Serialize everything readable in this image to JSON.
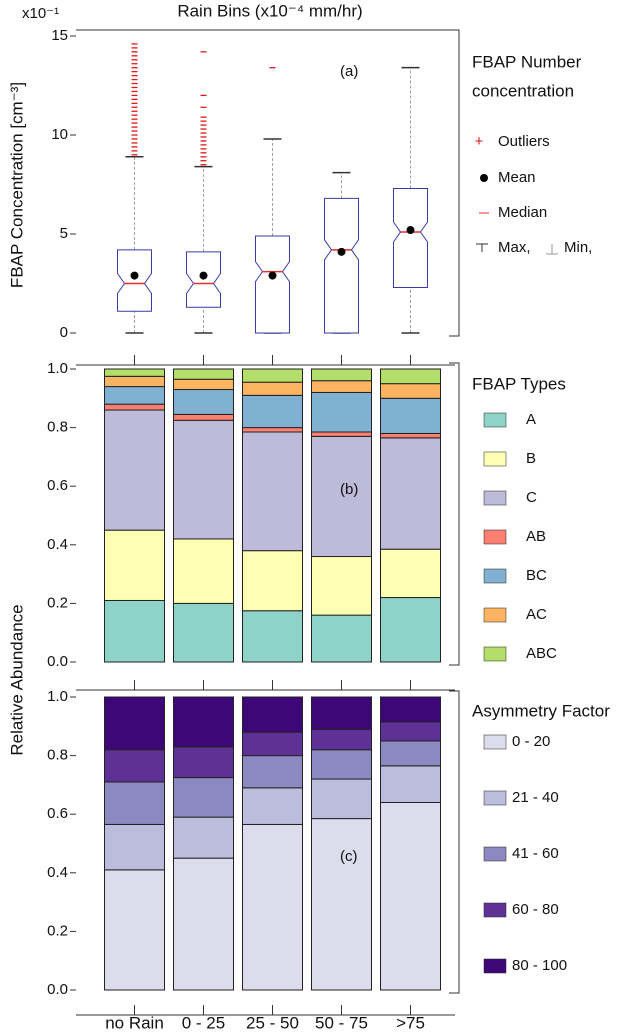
{
  "chart_data": [
    {
      "type": "box",
      "xlabel": "Rain Bins (x10⁻⁴ mm/hr)",
      "ylabel": "FBAP Concentration [cm⁻³]",
      "scale_label": "x10⁻¹",
      "annotation": "(a)",
      "ylim": [
        0,
        15
      ],
      "yticks": [
        0,
        5,
        10,
        15
      ],
      "legend_title": [
        "FBAP Number",
        "concentration"
      ],
      "legend": [
        "Outliers",
        "Mean",
        "Median",
        "Max,",
        "Min,"
      ],
      "box_color": "#3a3aa8",
      "median_color": "#e03030",
      "outlier_color": "#e01818",
      "whisker_color": "#a0a0a0",
      "mean_color": "#000000",
      "boxes": [
        {
          "min": 0,
          "q1": 1.1,
          "median": 2.5,
          "q3": 4.2,
          "max": 8.9,
          "mean": 2.9,
          "outliers": [
            9.0,
            9.2,
            9.4,
            9.6,
            9.8,
            10.0,
            10.2,
            10.4,
            10.6,
            10.8,
            11.0,
            11.2,
            11.4,
            11.6,
            11.8,
            12.0,
            12.2,
            12.4,
            12.6,
            12.8,
            13.0,
            13.2,
            13.4,
            13.6,
            13.8,
            14.0,
            14.2,
            14.4,
            14.6
          ]
        },
        {
          "min": 0,
          "q1": 1.3,
          "median": 2.5,
          "q3": 4.1,
          "max": 8.4,
          "mean": 2.9,
          "outliers": [
            8.5,
            8.7,
            8.9,
            9.1,
            9.3,
            9.5,
            9.7,
            9.9,
            10.1,
            10.3,
            10.5,
            10.7,
            10.9,
            11.4,
            12.0,
            14.2
          ]
        },
        {
          "min": 0,
          "q1": 0,
          "median": 3.1,
          "q3": 4.9,
          "max": 9.8,
          "mean": 2.9,
          "outliers": [
            13.4
          ]
        },
        {
          "min": 0,
          "q1": 0,
          "median": 4.2,
          "q3": 6.8,
          "max": 8.1,
          "mean": 4.1,
          "outliers": []
        },
        {
          "min": 0,
          "q1": 2.3,
          "median": 5.1,
          "q3": 7.3,
          "max": 13.4,
          "mean": 5.2,
          "outliers": []
        }
      ]
    },
    {
      "type": "stacked_bar",
      "ylabel": "Relative Abundance",
      "annotation": "(b)",
      "ylim": [
        0,
        1
      ],
      "yticks": [
        {
          "value": 0,
          "label": "0.0"
        },
        0.2,
        0.4,
        0.6,
        0.8,
        {
          "value": 1,
          "label": "1.0"
        }
      ],
      "legend_title": "FBAP Types",
      "series": [
        {
          "name": "A",
          "color": "#8dd3c7",
          "values": [
            0.21,
            0.2,
            0.175,
            0.16,
            0.22
          ]
        },
        {
          "name": "B",
          "color": "#ffffb3",
          "values": [
            0.24,
            0.22,
            0.205,
            0.2,
            0.165
          ]
        },
        {
          "name": "C",
          "color": "#bebada",
          "values": [
            0.41,
            0.405,
            0.405,
            0.41,
            0.38
          ]
        },
        {
          "name": "AB",
          "color": "#fb8072",
          "values": [
            0.02,
            0.02,
            0.015,
            0.015,
            0.015
          ]
        },
        {
          "name": "BC",
          "color": "#80b1d3",
          "values": [
            0.06,
            0.085,
            0.11,
            0.135,
            0.12
          ]
        },
        {
          "name": "AC",
          "color": "#fdb462",
          "values": [
            0.035,
            0.035,
            0.045,
            0.04,
            0.05
          ]
        },
        {
          "name": "ABC",
          "color": "#b3de69",
          "values": [
            0.025,
            0.035,
            0.045,
            0.04,
            0.05
          ]
        }
      ]
    },
    {
      "type": "stacked_bar",
      "annotation": "(c)",
      "categories": [
        "no Rain",
        "0 - 25",
        "25 - 50",
        "50 - 75",
        ">75"
      ],
      "ylim": [
        0,
        1
      ],
      "yticks": [
        {
          "value": 0,
          "label": "0.0"
        },
        0.2,
        0.4,
        0.6,
        0.8,
        {
          "value": 1,
          "label": "1.0"
        }
      ],
      "legend_title": "Asymmetry Factor",
      "series": [
        {
          "name": "0 - 20",
          "color": "#dcdcec",
          "values": [
            0.41,
            0.45,
            0.565,
            0.585,
            0.64
          ]
        },
        {
          "name": "21 - 40",
          "color": "#bcbcdc",
          "values": [
            0.155,
            0.14,
            0.125,
            0.135,
            0.125
          ]
        },
        {
          "name": "41 - 60",
          "color": "#8c88c0",
          "values": [
            0.145,
            0.135,
            0.11,
            0.1,
            0.085
          ]
        },
        {
          "name": "60 - 80",
          "color": "#5e3197",
          "values": [
            0.11,
            0.105,
            0.08,
            0.07,
            0.065
          ]
        },
        {
          "name": "80 - 100",
          "color": "#3d0778",
          "values": [
            0.18,
            0.17,
            0.12,
            0.11,
            0.085
          ]
        }
      ]
    }
  ]
}
